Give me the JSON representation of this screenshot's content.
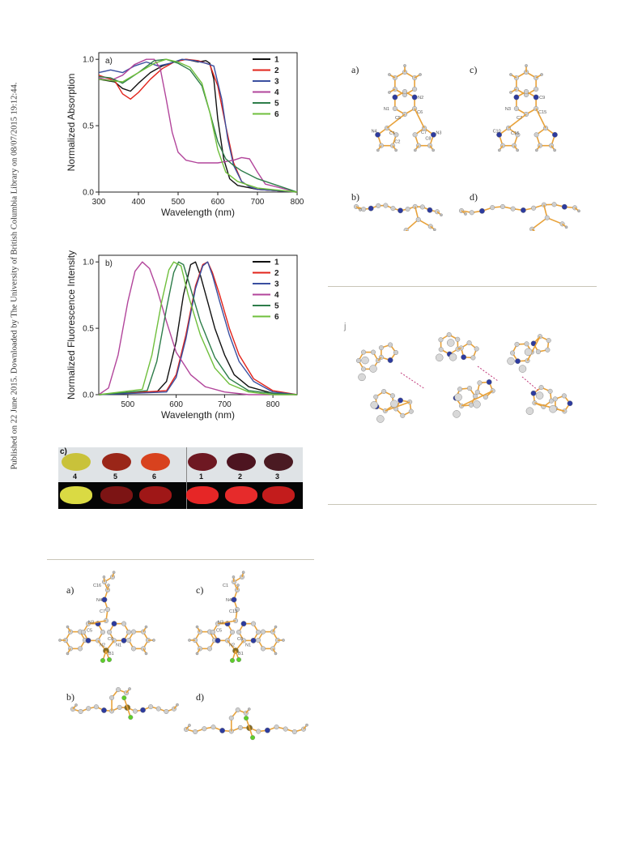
{
  "sidebar_note": "Published on 22 June 2015. Downloaded by The University of British Columbia Library on 08/07/2015 19:12:44.",
  "chart_data": [
    {
      "type": "line",
      "panel_label": "a)",
      "xlabel": "Wavelength (nm)",
      "ylabel": "Normalized Absorption",
      "xlim": [
        300,
        800
      ],
      "ylim": [
        0,
        1.05
      ],
      "xticks": [
        "300",
        "400",
        "500",
        "600",
        "700",
        "800"
      ],
      "yticks": [
        "0.0",
        "0.5",
        "1.0"
      ],
      "legend_position": "top-right",
      "series": [
        {
          "name": "1",
          "color": "#111111",
          "x": [
            300,
            320,
            340,
            360,
            380,
            400,
            430,
            460,
            490,
            520,
            550,
            570,
            580,
            590,
            600,
            615,
            630,
            650,
            700,
            800
          ],
          "y": [
            0.85,
            0.84,
            0.83,
            0.78,
            0.76,
            0.82,
            0.9,
            0.95,
            0.98,
            1.0,
            0.98,
            0.99,
            0.97,
            0.85,
            0.55,
            0.25,
            0.1,
            0.05,
            0.02,
            0.0
          ]
        },
        {
          "name": "2",
          "color": "#e2231a",
          "x": [
            300,
            320,
            340,
            360,
            380,
            400,
            430,
            460,
            490,
            520,
            550,
            580,
            600,
            620,
            640,
            660,
            680,
            700,
            800
          ],
          "y": [
            0.88,
            0.86,
            0.84,
            0.74,
            0.7,
            0.75,
            0.85,
            0.93,
            0.98,
            1.0,
            0.99,
            0.96,
            0.8,
            0.5,
            0.22,
            0.08,
            0.04,
            0.02,
            0.0
          ]
        },
        {
          "name": "3",
          "color": "#3a4fa0",
          "x": [
            300,
            330,
            360,
            390,
            420,
            450,
            480,
            510,
            540,
            570,
            590,
            610,
            625,
            640,
            660,
            680,
            700,
            800
          ],
          "y": [
            0.9,
            0.92,
            0.9,
            0.95,
            0.98,
            0.95,
            0.97,
            1.0,
            0.99,
            0.97,
            0.95,
            0.7,
            0.4,
            0.2,
            0.08,
            0.04,
            0.02,
            0.0
          ]
        },
        {
          "name": "4",
          "color": "#b2459b",
          "x": [
            300,
            330,
            360,
            390,
            420,
            440,
            455,
            470,
            485,
            500,
            520,
            550,
            600,
            640,
            660,
            680,
            700,
            720,
            800
          ],
          "y": [
            0.86,
            0.84,
            0.88,
            0.96,
            1.0,
            1.0,
            0.93,
            0.7,
            0.45,
            0.3,
            0.24,
            0.22,
            0.22,
            0.24,
            0.26,
            0.25,
            0.15,
            0.06,
            0.0
          ]
        },
        {
          "name": "5",
          "color": "#2e7d4a",
          "x": [
            300,
            330,
            360,
            400,
            440,
            470,
            500,
            530,
            560,
            580,
            600,
            620,
            640,
            660,
            700,
            750,
            800
          ],
          "y": [
            0.87,
            0.86,
            0.82,
            0.9,
            0.99,
            1.0,
            0.97,
            0.92,
            0.8,
            0.6,
            0.38,
            0.25,
            0.2,
            0.16,
            0.1,
            0.05,
            0.0
          ]
        },
        {
          "name": "6",
          "color": "#6fbf3c",
          "x": [
            300,
            330,
            360,
            400,
            440,
            470,
            500,
            530,
            560,
            580,
            600,
            620,
            650,
            700,
            800
          ],
          "y": [
            0.85,
            0.84,
            0.83,
            0.9,
            0.97,
            1.0,
            0.98,
            0.94,
            0.82,
            0.6,
            0.32,
            0.15,
            0.08,
            0.03,
            0.0
          ]
        }
      ]
    },
    {
      "type": "line",
      "panel_label": "b)",
      "xlabel": "Wavelength (nm)",
      "ylabel": "Normalized Fluorescence Intensity",
      "xlim": [
        440,
        850
      ],
      "ylim": [
        0,
        1.05
      ],
      "xticks": [
        "500",
        "600",
        "700",
        "800"
      ],
      "yticks": [
        "0.0",
        "0.5",
        "1.0"
      ],
      "legend_position": "top-right",
      "series": [
        {
          "name": "1",
          "color": "#111111",
          "x": [
            440,
            560,
            580,
            600,
            615,
            630,
            640,
            650,
            665,
            680,
            700,
            720,
            750,
            800,
            850
          ],
          "y": [
            0,
            0.02,
            0.1,
            0.4,
            0.75,
            0.98,
            1.0,
            0.9,
            0.7,
            0.5,
            0.3,
            0.15,
            0.06,
            0.01,
            0
          ]
        },
        {
          "name": "2",
          "color": "#e2231a",
          "x": [
            440,
            580,
            600,
            620,
            640,
            655,
            665,
            675,
            690,
            710,
            730,
            760,
            800,
            850
          ],
          "y": [
            0,
            0.03,
            0.15,
            0.45,
            0.82,
            0.98,
            1.0,
            0.92,
            0.75,
            0.5,
            0.3,
            0.12,
            0.03,
            0
          ]
        },
        {
          "name": "3",
          "color": "#3a4fa0",
          "x": [
            440,
            580,
            600,
            620,
            640,
            655,
            665,
            675,
            690,
            710,
            730,
            760,
            800,
            850
          ],
          "y": [
            0,
            0.02,
            0.13,
            0.42,
            0.8,
            0.97,
            1.0,
            0.9,
            0.7,
            0.45,
            0.25,
            0.1,
            0.02,
            0
          ]
        },
        {
          "name": "4",
          "color": "#b2459b",
          "x": [
            440,
            460,
            480,
            500,
            515,
            530,
            545,
            560,
            580,
            600,
            630,
            660,
            700,
            750,
            850
          ],
          "y": [
            0,
            0.05,
            0.3,
            0.7,
            0.93,
            1.0,
            0.95,
            0.8,
            0.55,
            0.32,
            0.15,
            0.06,
            0.02,
            0,
            0
          ]
        },
        {
          "name": "5",
          "color": "#2e7d4a",
          "x": [
            440,
            540,
            560,
            580,
            595,
            605,
            615,
            630,
            650,
            680,
            710,
            750,
            800,
            850
          ],
          "y": [
            0,
            0.03,
            0.25,
            0.65,
            0.92,
            1.0,
            0.98,
            0.8,
            0.55,
            0.28,
            0.12,
            0.03,
            0.01,
            0
          ]
        },
        {
          "name": "6",
          "color": "#6fbf3c",
          "x": [
            440,
            530,
            550,
            570,
            585,
            595,
            610,
            625,
            650,
            680,
            710,
            750,
            800,
            850
          ],
          "y": [
            0,
            0.04,
            0.3,
            0.7,
            0.94,
            1.0,
            0.97,
            0.75,
            0.45,
            0.2,
            0.08,
            0.02,
            0,
            0
          ]
        }
      ]
    }
  ],
  "photo_panel": {
    "label": "c)",
    "labels": [
      "4",
      "5",
      "6",
      "1",
      "2",
      "3"
    ],
    "daylight_colors": [
      "#c9c23a",
      "#9a2618",
      "#d8421e",
      "#6e1822",
      "#4d1420",
      "#4a1a22"
    ],
    "uv_colors": [
      "#f2f24a",
      "#8a1616",
      "#b01a1a",
      "#ff2a2a",
      "#ff3030",
      "#d81f1f"
    ]
  },
  "crystal_top": {
    "a_label": "a)",
    "b_label": "b)",
    "c_label": "c)",
    "d_label": "d)",
    "atoms_a": [
      "N1",
      "N2",
      "C5",
      "C6",
      "N4",
      "C1",
      "C7",
      "C2",
      "C8",
      "N3"
    ],
    "atoms_c": [
      "N3",
      "C9",
      "C7",
      "C15",
      "C10",
      "C16"
    ]
  },
  "packing_label": "j",
  "crystal_bottom": {
    "a_label": "a)",
    "b_label": "b)",
    "c_label": "c)",
    "d_label": "d)",
    "atoms_a": [
      "C16",
      "N4",
      "C7",
      "N3",
      "C5",
      "C6",
      "N2",
      "N1",
      "B1"
    ],
    "atoms_c": [
      "C1",
      "N4",
      "C13",
      "N3",
      "C5",
      "C6",
      "N2",
      "N1",
      "B1"
    ]
  }
}
